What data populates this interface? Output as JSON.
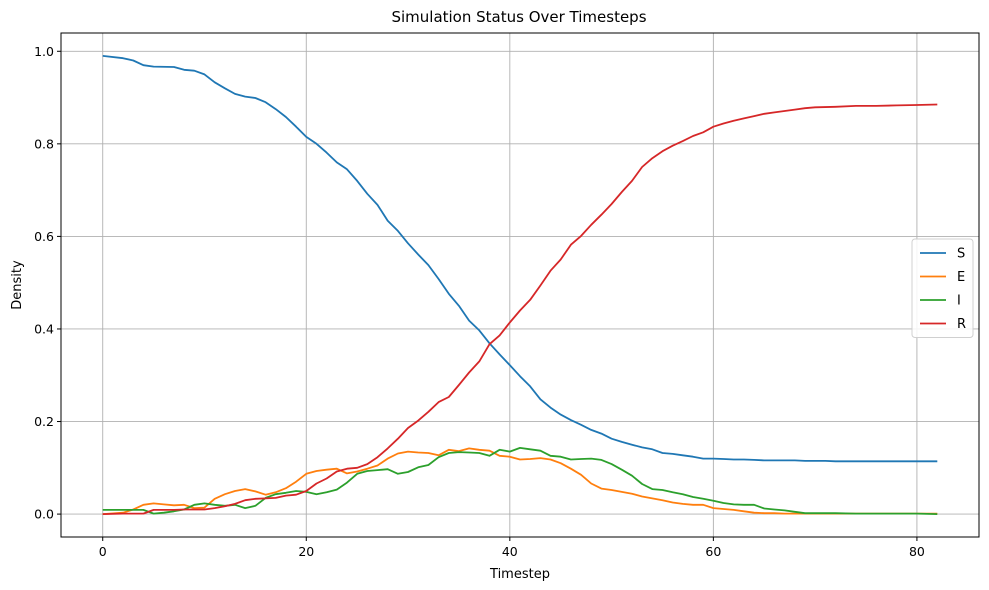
{
  "chart_data": {
    "type": "line",
    "title": "Simulation Status Over Timesteps",
    "xlabel": "Timestep",
    "ylabel": "Density",
    "xlim": [
      -4.1,
      86.1
    ],
    "ylim": [
      -0.0495,
      1.0395
    ],
    "xticks": [
      0,
      20,
      40,
      60,
      80
    ],
    "yticks": [
      0.0,
      0.2,
      0.4,
      0.6,
      0.8,
      1.0
    ],
    "xtick_labels": [
      "0",
      "20",
      "40",
      "60",
      "80"
    ],
    "ytick_labels": [
      "0.0",
      "0.2",
      "0.4",
      "0.6",
      "0.8",
      "1.0"
    ],
    "grid": true,
    "legend_position": "center-right",
    "series": [
      {
        "name": "S",
        "color": "#1f77b4",
        "points": [
          [
            0,
            0.99
          ],
          [
            2,
            0.985
          ],
          [
            3,
            0.98
          ],
          [
            4,
            0.97
          ],
          [
            5,
            0.967
          ],
          [
            7,
            0.966
          ],
          [
            8,
            0.96
          ],
          [
            9,
            0.958
          ],
          [
            10,
            0.95
          ],
          [
            11,
            0.933
          ],
          [
            12,
            0.92
          ],
          [
            13,
            0.908
          ],
          [
            14,
            0.902
          ],
          [
            15,
            0.899
          ],
          [
            16,
            0.89
          ],
          [
            17,
            0.875
          ],
          [
            18,
            0.858
          ],
          [
            19,
            0.837
          ],
          [
            20,
            0.815
          ],
          [
            21,
            0.8
          ],
          [
            22,
            0.781
          ],
          [
            23,
            0.76
          ],
          [
            24,
            0.745
          ],
          [
            25,
            0.72
          ],
          [
            26,
            0.692
          ],
          [
            27,
            0.668
          ],
          [
            28,
            0.634
          ],
          [
            29,
            0.612
          ],
          [
            30,
            0.585
          ],
          [
            31,
            0.561
          ],
          [
            32,
            0.538
          ],
          [
            33,
            0.508
          ],
          [
            34,
            0.476
          ],
          [
            35,
            0.45
          ],
          [
            36,
            0.418
          ],
          [
            37,
            0.397
          ],
          [
            38,
            0.369
          ],
          [
            39,
            0.345
          ],
          [
            40,
            0.322
          ],
          [
            41,
            0.298
          ],
          [
            42,
            0.276
          ],
          [
            43,
            0.248
          ],
          [
            44,
            0.23
          ],
          [
            45,
            0.215
          ],
          [
            46,
            0.203
          ],
          [
            47,
            0.193
          ],
          [
            48,
            0.182
          ],
          [
            49,
            0.174
          ],
          [
            50,
            0.163
          ],
          [
            51,
            0.156
          ],
          [
            52,
            0.15
          ],
          [
            53,
            0.144
          ],
          [
            54,
            0.14
          ],
          [
            55,
            0.132
          ],
          [
            56,
            0.13
          ],
          [
            57,
            0.127
          ],
          [
            58,
            0.124
          ],
          [
            59,
            0.12
          ],
          [
            60,
            0.12
          ],
          [
            61,
            0.119
          ],
          [
            62,
            0.118
          ],
          [
            63,
            0.118
          ],
          [
            64,
            0.117
          ],
          [
            65,
            0.116
          ],
          [
            66,
            0.116
          ],
          [
            67,
            0.116
          ],
          [
            68,
            0.116
          ],
          [
            69,
            0.115
          ],
          [
            70,
            0.115
          ],
          [
            71,
            0.115
          ],
          [
            72,
            0.114
          ],
          [
            74,
            0.114
          ],
          [
            76,
            0.114
          ],
          [
            78,
            0.114
          ],
          [
            80,
            0.114
          ],
          [
            82,
            0.114
          ]
        ]
      },
      {
        "name": "E",
        "color": "#ff7f0e",
        "points": [
          [
            0,
            0.0
          ],
          [
            2,
            0.003
          ],
          [
            3,
            0.01
          ],
          [
            4,
            0.02
          ],
          [
            5,
            0.023
          ],
          [
            6,
            0.021
          ],
          [
            7,
            0.019
          ],
          [
            8,
            0.02
          ],
          [
            9,
            0.013
          ],
          [
            10,
            0.014
          ],
          [
            11,
            0.033
          ],
          [
            12,
            0.043
          ],
          [
            13,
            0.05
          ],
          [
            14,
            0.054
          ],
          [
            15,
            0.049
          ],
          [
            16,
            0.042
          ],
          [
            17,
            0.047
          ],
          [
            18,
            0.056
          ],
          [
            19,
            0.07
          ],
          [
            20,
            0.087
          ],
          [
            21,
            0.093
          ],
          [
            22,
            0.096
          ],
          [
            23,
            0.098
          ],
          [
            24,
            0.088
          ],
          [
            25,
            0.092
          ],
          [
            26,
            0.098
          ],
          [
            27,
            0.105
          ],
          [
            28,
            0.12
          ],
          [
            29,
            0.131
          ],
          [
            30,
            0.135
          ],
          [
            31,
            0.133
          ],
          [
            32,
            0.132
          ],
          [
            33,
            0.127
          ],
          [
            34,
            0.139
          ],
          [
            35,
            0.136
          ],
          [
            36,
            0.142
          ],
          [
            37,
            0.139
          ],
          [
            38,
            0.137
          ],
          [
            39,
            0.126
          ],
          [
            40,
            0.124
          ],
          [
            41,
            0.118
          ],
          [
            42,
            0.119
          ],
          [
            43,
            0.121
          ],
          [
            44,
            0.118
          ],
          [
            45,
            0.11
          ],
          [
            46,
            0.098
          ],
          [
            47,
            0.085
          ],
          [
            48,
            0.066
          ],
          [
            49,
            0.055
          ],
          [
            50,
            0.052
          ],
          [
            51,
            0.048
          ],
          [
            52,
            0.044
          ],
          [
            53,
            0.038
          ],
          [
            54,
            0.034
          ],
          [
            55,
            0.03
          ],
          [
            56,
            0.025
          ],
          [
            57,
            0.022
          ],
          [
            58,
            0.02
          ],
          [
            59,
            0.02
          ],
          [
            60,
            0.013
          ],
          [
            61,
            0.011
          ],
          [
            62,
            0.009
          ],
          [
            63,
            0.006
          ],
          [
            64,
            0.003
          ],
          [
            65,
            0.002
          ],
          [
            66,
            0.002
          ],
          [
            67,
            0.001
          ],
          [
            68,
            0.001
          ],
          [
            70,
            0.001
          ],
          [
            72,
            0.001
          ],
          [
            74,
            0.001
          ],
          [
            76,
            0.001
          ],
          [
            78,
            0.001
          ],
          [
            80,
            0.001
          ],
          [
            82,
            0.001
          ]
        ]
      },
      {
        "name": "I",
        "color": "#2ca02c",
        "points": [
          [
            0,
            0.009
          ],
          [
            2,
            0.009
          ],
          [
            3,
            0.009
          ],
          [
            4,
            0.009
          ],
          [
            5,
            0.001
          ],
          [
            6,
            0.003
          ],
          [
            7,
            0.006
          ],
          [
            8,
            0.01
          ],
          [
            9,
            0.02
          ],
          [
            10,
            0.023
          ],
          [
            11,
            0.02
          ],
          [
            12,
            0.018
          ],
          [
            13,
            0.02
          ],
          [
            14,
            0.013
          ],
          [
            15,
            0.018
          ],
          [
            16,
            0.035
          ],
          [
            17,
            0.043
          ],
          [
            18,
            0.046
          ],
          [
            19,
            0.05
          ],
          [
            20,
            0.048
          ],
          [
            21,
            0.043
          ],
          [
            22,
            0.047
          ],
          [
            23,
            0.053
          ],
          [
            24,
            0.068
          ],
          [
            25,
            0.087
          ],
          [
            26,
            0.093
          ],
          [
            27,
            0.095
          ],
          [
            28,
            0.097
          ],
          [
            29,
            0.087
          ],
          [
            30,
            0.091
          ],
          [
            31,
            0.101
          ],
          [
            32,
            0.106
          ],
          [
            33,
            0.123
          ],
          [
            34,
            0.132
          ],
          [
            35,
            0.134
          ],
          [
            36,
            0.133
          ],
          [
            37,
            0.132
          ],
          [
            38,
            0.126
          ],
          [
            39,
            0.139
          ],
          [
            40,
            0.135
          ],
          [
            41,
            0.143
          ],
          [
            42,
            0.14
          ],
          [
            43,
            0.137
          ],
          [
            44,
            0.126
          ],
          [
            45,
            0.124
          ],
          [
            46,
            0.118
          ],
          [
            47,
            0.119
          ],
          [
            48,
            0.12
          ],
          [
            49,
            0.117
          ],
          [
            50,
            0.108
          ],
          [
            51,
            0.096
          ],
          [
            52,
            0.083
          ],
          [
            53,
            0.065
          ],
          [
            54,
            0.054
          ],
          [
            55,
            0.052
          ],
          [
            56,
            0.047
          ],
          [
            57,
            0.043
          ],
          [
            58,
            0.037
          ],
          [
            59,
            0.033
          ],
          [
            60,
            0.029
          ],
          [
            61,
            0.024
          ],
          [
            62,
            0.021
          ],
          [
            63,
            0.02
          ],
          [
            64,
            0.02
          ],
          [
            65,
            0.012
          ],
          [
            66,
            0.01
          ],
          [
            67,
            0.008
          ],
          [
            68,
            0.005
          ],
          [
            69,
            0.002
          ],
          [
            70,
            0.002
          ],
          [
            72,
            0.002
          ],
          [
            74,
            0.001
          ],
          [
            76,
            0.001
          ],
          [
            78,
            0.001
          ],
          [
            80,
            0.001
          ],
          [
            82,
            0.0
          ]
        ]
      },
      {
        "name": "R",
        "color": "#d62728",
        "points": [
          [
            0,
            0.0
          ],
          [
            2,
            0.001
          ],
          [
            3,
            0.001
          ],
          [
            4,
            0.001
          ],
          [
            5,
            0.009
          ],
          [
            6,
            0.009
          ],
          [
            7,
            0.009
          ],
          [
            8,
            0.01
          ],
          [
            9,
            0.01
          ],
          [
            10,
            0.01
          ],
          [
            11,
            0.013
          ],
          [
            12,
            0.017
          ],
          [
            13,
            0.022
          ],
          [
            14,
            0.03
          ],
          [
            15,
            0.033
          ],
          [
            16,
            0.034
          ],
          [
            17,
            0.035
          ],
          [
            18,
            0.04
          ],
          [
            19,
            0.042
          ],
          [
            20,
            0.05
          ],
          [
            21,
            0.066
          ],
          [
            22,
            0.077
          ],
          [
            23,
            0.092
          ],
          [
            24,
            0.098
          ],
          [
            25,
            0.1
          ],
          [
            26,
            0.108
          ],
          [
            27,
            0.123
          ],
          [
            28,
            0.142
          ],
          [
            29,
            0.163
          ],
          [
            30,
            0.186
          ],
          [
            31,
            0.202
          ],
          [
            32,
            0.221
          ],
          [
            33,
            0.242
          ],
          [
            34,
            0.253
          ],
          [
            35,
            0.279
          ],
          [
            36,
            0.306
          ],
          [
            37,
            0.33
          ],
          [
            38,
            0.367
          ],
          [
            39,
            0.386
          ],
          [
            40,
            0.414
          ],
          [
            41,
            0.44
          ],
          [
            42,
            0.463
          ],
          [
            43,
            0.494
          ],
          [
            44,
            0.526
          ],
          [
            45,
            0.55
          ],
          [
            46,
            0.582
          ],
          [
            47,
            0.601
          ],
          [
            48,
            0.625
          ],
          [
            49,
            0.647
          ],
          [
            50,
            0.67
          ],
          [
            51,
            0.696
          ],
          [
            52,
            0.72
          ],
          [
            53,
            0.75
          ],
          [
            54,
            0.769
          ],
          [
            55,
            0.784
          ],
          [
            56,
            0.796
          ],
          [
            57,
            0.806
          ],
          [
            58,
            0.817
          ],
          [
            59,
            0.825
          ],
          [
            60,
            0.837
          ],
          [
            61,
            0.844
          ],
          [
            62,
            0.85
          ],
          [
            63,
            0.855
          ],
          [
            64,
            0.86
          ],
          [
            65,
            0.865
          ],
          [
            66,
            0.868
          ],
          [
            67,
            0.871
          ],
          [
            68,
            0.874
          ],
          [
            69,
            0.877
          ],
          [
            70,
            0.879
          ],
          [
            72,
            0.88
          ],
          [
            74,
            0.882
          ],
          [
            76,
            0.882
          ],
          [
            78,
            0.883
          ],
          [
            80,
            0.884
          ],
          [
            82,
            0.885
          ]
        ]
      }
    ]
  }
}
